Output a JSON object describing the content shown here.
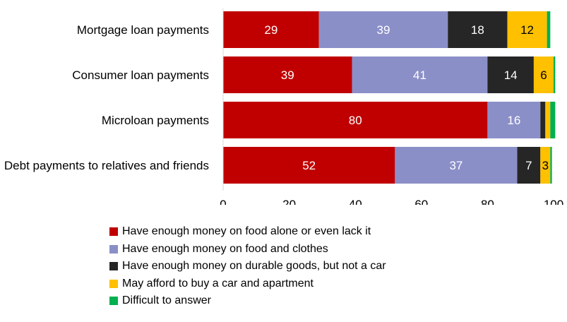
{
  "chart_data": {
    "type": "bar",
    "orientation": "horizontal",
    "stacked": true,
    "title": "",
    "xlabel": "",
    "ylabel": "",
    "xlim": [
      0,
      100
    ],
    "x_ticks": [
      0,
      20,
      40,
      60,
      80,
      100
    ],
    "grid": false,
    "legend_position": "bottom",
    "categories": [
      "Mortgage loan payments",
      "Consumer loan payments",
      "Microloan payments",
      "Debt payments to relatives and friends"
    ],
    "series": [
      {
        "name": "Have enough money on food alone or even lack it",
        "color": "#C00000",
        "values": [
          29,
          39,
          80,
          52
        ],
        "labels": [
          "29",
          "39",
          "80",
          "52"
        ]
      },
      {
        "name": "Have enough money on food and clothes",
        "color": "#8B8FC8",
        "values": [
          39,
          41,
          16,
          37
        ],
        "labels": [
          "39",
          "41",
          "16",
          "37"
        ]
      },
      {
        "name": "Have enough money on durable goods, but not a car",
        "color": "#262626",
        "values": [
          18,
          14,
          1.5,
          7
        ],
        "labels": [
          "18",
          "14",
          "",
          "7"
        ]
      },
      {
        "name": "May afford to buy a car and apartment",
        "color": "#FFC000",
        "values": [
          12,
          6,
          1.5,
          3
        ],
        "labels": [
          "12",
          "6",
          "",
          "3"
        ]
      },
      {
        "name": "Difficult to answer",
        "color": "#00B050",
        "values": [
          1,
          0.5,
          1.5,
          0.5
        ],
        "labels": [
          "",
          "",
          "",
          ""
        ]
      }
    ]
  }
}
